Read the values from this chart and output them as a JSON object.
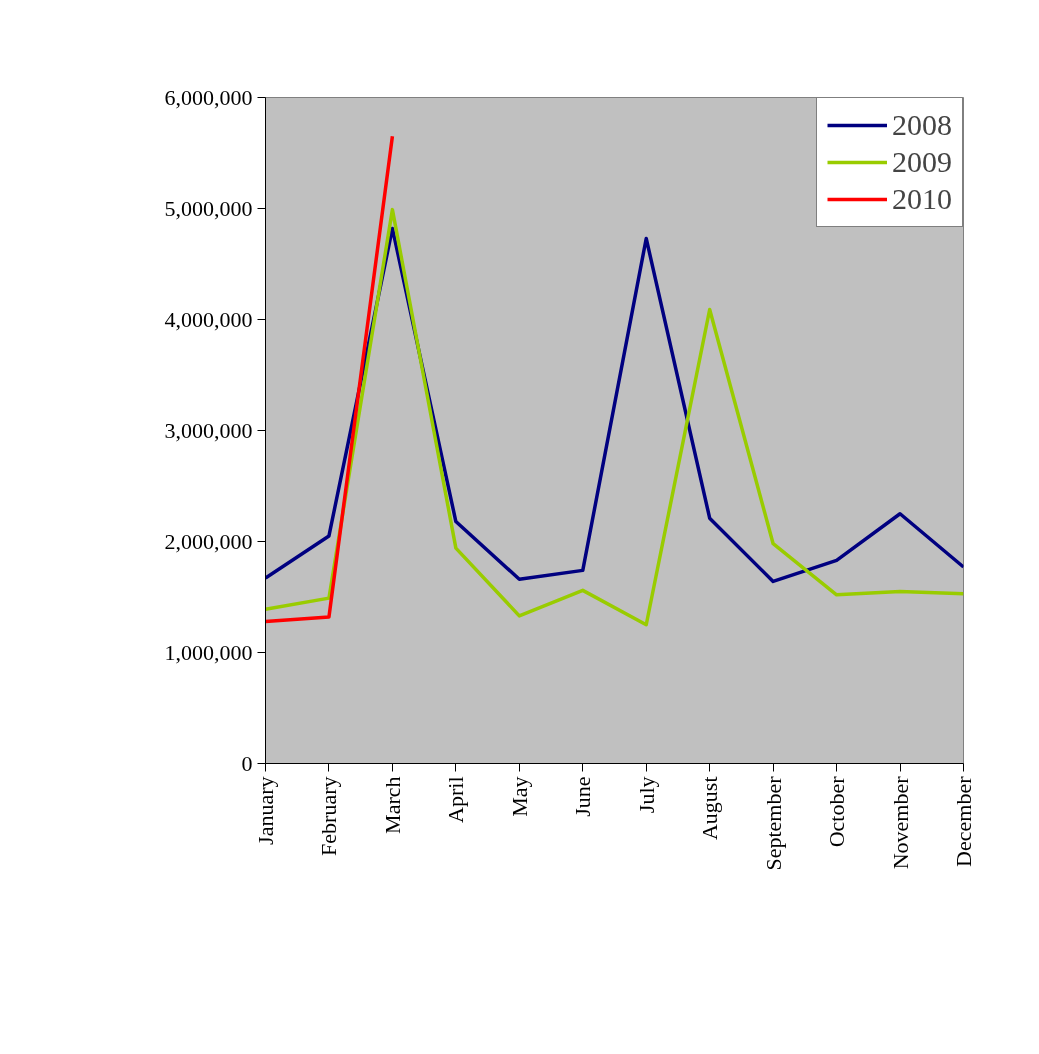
{
  "chart_data": {
    "type": "line",
    "categories": [
      "January",
      "February",
      "March",
      "April",
      "May",
      "June",
      "July",
      "August",
      "September",
      "October",
      "November",
      "December"
    ],
    "series": [
      {
        "name": "2008",
        "color": "#000080",
        "values": [
          1670000,
          2050000,
          4820000,
          2180000,
          1660000,
          1740000,
          4730000,
          2210000,
          1640000,
          1830000,
          2250000,
          1770000
        ]
      },
      {
        "name": "2009",
        "color": "#99cc00",
        "values": [
          1390000,
          1490000,
          4990000,
          1940000,
          1330000,
          1560000,
          1250000,
          4090000,
          1980000,
          1520000,
          1550000,
          1530000
        ]
      },
      {
        "name": "2010",
        "color": "#ff0000",
        "values": [
          1280000,
          1320000,
          5650000,
          null,
          null,
          null,
          null,
          null,
          null,
          null,
          null,
          null
        ]
      }
    ],
    "ylim": [
      0,
      6000000
    ],
    "yticks": [
      {
        "value": 0,
        "label": "0"
      },
      {
        "value": 1000000,
        "label": "1,000,000"
      },
      {
        "value": 2000000,
        "label": "2,000,000"
      },
      {
        "value": 3000000,
        "label": "3,000,000"
      },
      {
        "value": 4000000,
        "label": "4,000,000"
      },
      {
        "value": 5000000,
        "label": "5,000,000"
      },
      {
        "value": 6000000,
        "label": "6,000,000"
      }
    ],
    "grid": false,
    "legend": "top right",
    "marker": "none",
    "line_style": "solid"
  }
}
